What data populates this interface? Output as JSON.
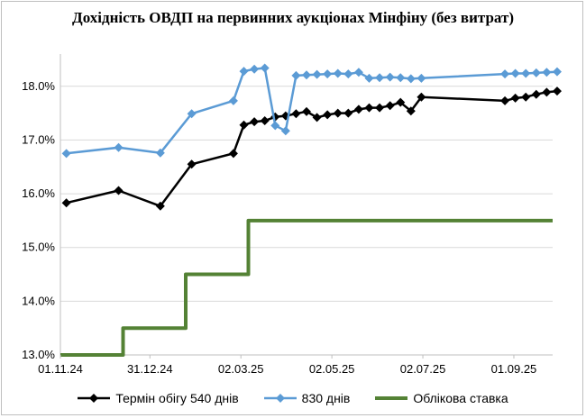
{
  "chart_data": {
    "type": "line",
    "title": "Дохідність ОВДП на первинних аукціонах Мінфіну (без витрат)",
    "xlabel": "",
    "ylabel": "",
    "x_range": [
      "2024-11-01",
      "2025-09-27"
    ],
    "ylim": [
      13.0,
      18.6
    ],
    "x_tick_labels": [
      "01.11.24",
      "31.12.24",
      "02.03.25",
      "02.05.25",
      "02.07.25",
      "01.09.25"
    ],
    "y_tick_labels": [
      "13.0%",
      "14.0%",
      "15.0%",
      "16.0%",
      "17.0%",
      "18.0%"
    ],
    "grid": "horizontal",
    "legend_position": "bottom",
    "series": [
      {
        "name": "Термін обігу 540 днів",
        "color": "#000000",
        "marker": "diamond",
        "points": [
          [
            "2024-11-05",
            15.83
          ],
          [
            "2024-12-10",
            16.06
          ],
          [
            "2025-01-07",
            15.77
          ],
          [
            "2025-01-28",
            16.55
          ],
          [
            "2025-02-25",
            16.75
          ],
          [
            "2025-03-04",
            17.28
          ],
          [
            "2025-03-11",
            17.34
          ],
          [
            "2025-03-18",
            17.36
          ],
          [
            "2025-03-25",
            17.43
          ],
          [
            "2025-04-01",
            17.45
          ],
          [
            "2025-04-08",
            17.49
          ],
          [
            "2025-04-15",
            17.53
          ],
          [
            "2025-04-22",
            17.42
          ],
          [
            "2025-04-29",
            17.47
          ],
          [
            "2025-05-06",
            17.5
          ],
          [
            "2025-05-13",
            17.5
          ],
          [
            "2025-05-20",
            17.57
          ],
          [
            "2025-05-27",
            17.6
          ],
          [
            "2025-06-03",
            17.6
          ],
          [
            "2025-06-10",
            17.64
          ],
          [
            "2025-06-17",
            17.7
          ],
          [
            "2025-06-24",
            17.54
          ],
          [
            "2025-07-01",
            17.8
          ],
          [
            "2025-08-26",
            17.73
          ],
          [
            "2025-09-02",
            17.78
          ],
          [
            "2025-09-09",
            17.8
          ],
          [
            "2025-09-16",
            17.85
          ],
          [
            "2025-09-23",
            17.89
          ],
          [
            "2025-09-30",
            17.91
          ]
        ]
      },
      {
        "name": "830 днів",
        "color": "#5b9bd5",
        "marker": "diamond",
        "points": [
          [
            "2024-11-05",
            16.75
          ],
          [
            "2024-12-10",
            16.86
          ],
          [
            "2025-01-07",
            16.76
          ],
          [
            "2025-01-28",
            17.49
          ],
          [
            "2025-02-25",
            17.73
          ],
          [
            "2025-03-04",
            18.28
          ],
          [
            "2025-03-11",
            18.32
          ],
          [
            "2025-03-18",
            18.34
          ],
          [
            "2025-03-25",
            17.27
          ],
          [
            "2025-04-01",
            17.17
          ],
          [
            "2025-04-08",
            18.2
          ],
          [
            "2025-04-15",
            18.21
          ],
          [
            "2025-04-22",
            18.22
          ],
          [
            "2025-04-29",
            18.23
          ],
          [
            "2025-05-06",
            18.24
          ],
          [
            "2025-05-13",
            18.23
          ],
          [
            "2025-05-20",
            18.26
          ],
          [
            "2025-05-27",
            18.15
          ],
          [
            "2025-06-03",
            18.16
          ],
          [
            "2025-06-10",
            18.17
          ],
          [
            "2025-06-17",
            18.16
          ],
          [
            "2025-06-24",
            18.14
          ],
          [
            "2025-07-01",
            18.15
          ],
          [
            "2025-08-26",
            18.23
          ],
          [
            "2025-09-02",
            18.24
          ],
          [
            "2025-09-09",
            18.24
          ],
          [
            "2025-09-16",
            18.25
          ],
          [
            "2025-09-23",
            18.26
          ],
          [
            "2025-09-30",
            18.27
          ]
        ]
      },
      {
        "name": "Облікова ставка",
        "color": "#548235",
        "marker": "none",
        "step": true,
        "points": [
          [
            "2024-11-01",
            13.0
          ],
          [
            "2024-12-13",
            13.0
          ],
          [
            "2024-12-13",
            13.5
          ],
          [
            "2025-01-24",
            13.5
          ],
          [
            "2025-01-24",
            14.5
          ],
          [
            "2025-03-07",
            14.5
          ],
          [
            "2025-03-07",
            15.5
          ],
          [
            "2025-09-27",
            15.5
          ]
        ]
      }
    ]
  }
}
